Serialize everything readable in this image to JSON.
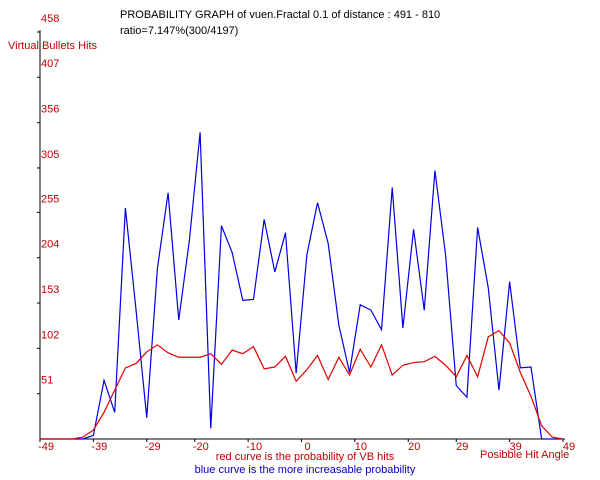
{
  "chart_data": {
    "type": "line",
    "title": "PROBABILITY GRAPH  of  vuen.Fractal 0.1 of distance : 491 - 810",
    "subtitle": "ratio=7.147%(300/4197)",
    "y_label": "Virtual Bullets Hits",
    "x_label": "Posibble Hit Angle",
    "annotations": [
      "red curve is the probability of VB hits",
      "blue curve is the more increasable probability"
    ],
    "x": [
      -49,
      -47,
      -45,
      -43,
      -41,
      -39,
      -37,
      -35,
      -33,
      -31,
      -29,
      -27,
      -25,
      -23,
      -21,
      -19,
      -17,
      -15,
      -13,
      -11,
      -9,
      -7,
      -5,
      -3,
      -1,
      1,
      3,
      5,
      7,
      9,
      11,
      13,
      15,
      17,
      19,
      21,
      23,
      25,
      27,
      29,
      31,
      33,
      35,
      37,
      39,
      41,
      43,
      45,
      47,
      49
    ],
    "series": [
      {
        "color": "#0000e0",
        "values": [
          0,
          0,
          0,
          0,
          0,
          4,
          66,
          30,
          260,
          145,
          24,
          192,
          277,
          134,
          224,
          345,
          12,
          240,
          210,
          156,
          157,
          247,
          188,
          232,
          74,
          207,
          266,
          220,
          128,
          75,
          151,
          145,
          123,
          283,
          125,
          236,
          145,
          302,
          207,
          60,
          47,
          238,
          170,
          55,
          177,
          80,
          81,
          0,
          0,
          0
        ]
      },
      {
        "color": "#e00000",
        "values": [
          0,
          0,
          0,
          0,
          2,
          10,
          30,
          55,
          80,
          85,
          98,
          106,
          97,
          92,
          92,
          92,
          96,
          84,
          100,
          96,
          104,
          79,
          81,
          93,
          65,
          78,
          94,
          67,
          92,
          72,
          101,
          81,
          106,
          72,
          83,
          86,
          87,
          93,
          83,
          70,
          94,
          70,
          115,
          122,
          108,
          75,
          48,
          15,
          2,
          0
        ]
      }
    ],
    "xlim": [
      -49,
      49
    ],
    "xticks": [
      -49,
      -39,
      -29,
      -20,
      -10,
      0,
      10,
      20,
      29,
      39,
      49
    ],
    "ylim": [
      0,
      458
    ],
    "yticks": [
      51,
      102,
      153,
      204,
      255,
      305,
      356,
      407,
      458
    ]
  }
}
